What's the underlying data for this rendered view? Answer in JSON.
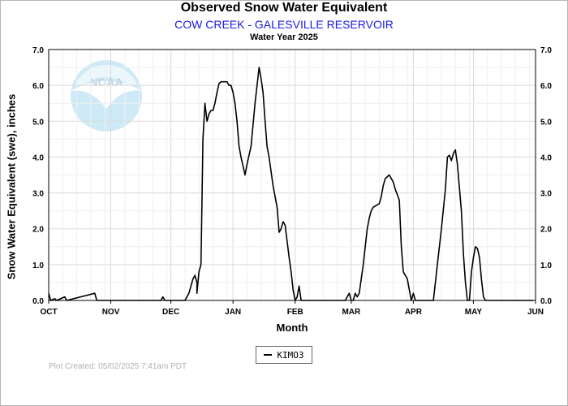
{
  "header": {
    "title": "Observed Snow Water Equivalent",
    "subtitle": "COW CREEK - GALESVILLE RESERVOIR",
    "water_year": "Water Year 2025"
  },
  "footer": {
    "plot_created": "Plot Created: 05/02/2025 7:41am PDT"
  },
  "watermark": {
    "text": "NOAA",
    "colors": {
      "disc": "#cfeaf7",
      "bird": "#ffffff",
      "text": "#c6d3e6"
    }
  },
  "chart_data": {
    "type": "line",
    "title": "Observed Snow Water Equivalent",
    "xlabel": "Month",
    "ylabel": "Snow Water Equivalent (swe),  inches",
    "x_ticks": [
      "OCT",
      "NOV",
      "DEC",
      "JAN",
      "FEB",
      "MAR",
      "APR",
      "MAY",
      "JUN"
    ],
    "y_ticks": [
      "0.0",
      "1.0",
      "2.0",
      "3.0",
      "4.0",
      "5.0",
      "6.0",
      "7.0"
    ],
    "xlim": [
      "2024-10-01",
      "2025-06-01"
    ],
    "ylim": [
      0,
      7
    ],
    "grid": true,
    "legend_position": "bottom-center",
    "series": [
      {
        "name": "KIMO3",
        "color": "#000000",
        "points": [
          [
            "2024-10-01",
            0.2
          ],
          [
            "2024-10-02",
            0.0
          ],
          [
            "2024-10-04",
            0.05
          ],
          [
            "2024-10-05",
            0.0
          ],
          [
            "2024-10-09",
            0.1
          ],
          [
            "2024-10-10",
            0.0
          ],
          [
            "2024-10-24",
            0.2
          ],
          [
            "2024-10-25",
            0.0
          ],
          [
            "2024-11-01",
            0.0
          ],
          [
            "2024-11-26",
            0.0
          ],
          [
            "2024-11-27",
            0.1
          ],
          [
            "2024-11-28",
            0.0
          ],
          [
            "2024-12-03",
            0.0
          ],
          [
            "2024-12-08",
            0.0
          ],
          [
            "2024-12-10",
            0.2
          ],
          [
            "2024-12-12",
            0.6
          ],
          [
            "2024-12-13",
            0.7
          ],
          [
            "2024-12-14",
            0.5
          ],
          [
            "2024-12-14",
            0.2
          ],
          [
            "2024-12-15",
            0.8
          ],
          [
            "2024-12-16",
            1.0
          ],
          [
            "2024-12-17",
            4.5
          ],
          [
            "2024-12-18",
            5.5
          ],
          [
            "2024-12-19",
            5.0
          ],
          [
            "2024-12-20",
            5.2
          ],
          [
            "2024-12-21",
            5.3
          ],
          [
            "2024-12-22",
            5.3
          ],
          [
            "2024-12-23",
            5.5
          ],
          [
            "2024-12-24",
            5.8
          ],
          [
            "2024-12-25",
            6.05
          ],
          [
            "2024-12-26",
            6.1
          ],
          [
            "2024-12-29",
            6.1
          ],
          [
            "2024-12-30",
            6.0
          ],
          [
            "2024-12-31",
            6.0
          ],
          [
            "2025-01-01",
            5.8
          ],
          [
            "2025-01-02",
            5.5
          ],
          [
            "2025-01-03",
            5.0
          ],
          [
            "2025-01-04",
            4.3
          ],
          [
            "2025-01-05",
            4.0
          ],
          [
            "2025-01-07",
            3.5
          ],
          [
            "2025-01-08",
            3.8
          ],
          [
            "2025-01-10",
            4.3
          ],
          [
            "2025-01-12",
            5.5
          ],
          [
            "2025-01-14",
            6.5
          ],
          [
            "2025-01-15",
            6.2
          ],
          [
            "2025-01-16",
            5.8
          ],
          [
            "2025-01-17",
            5.0
          ],
          [
            "2025-01-18",
            4.3
          ],
          [
            "2025-01-19",
            4.0
          ],
          [
            "2025-01-21",
            3.2
          ],
          [
            "2025-01-23",
            2.6
          ],
          [
            "2025-01-24",
            1.9
          ],
          [
            "2025-01-25",
            2.0
          ],
          [
            "2025-01-26",
            2.2
          ],
          [
            "2025-01-27",
            2.1
          ],
          [
            "2025-01-29",
            1.2
          ],
          [
            "2025-01-30",
            0.8
          ],
          [
            "2025-01-31",
            0.3
          ],
          [
            "2025-02-01",
            0.0
          ],
          [
            "2025-02-02",
            0.1
          ],
          [
            "2025-02-03",
            0.4
          ],
          [
            "2025-02-04",
            0.0
          ],
          [
            "2025-02-05",
            0.0
          ],
          [
            "2025-02-26",
            0.0
          ],
          [
            "2025-02-28",
            0.2
          ],
          [
            "2025-03-01",
            0.0
          ],
          [
            "2025-03-02",
            0.0
          ],
          [
            "2025-03-03",
            0.2
          ],
          [
            "2025-03-04",
            0.1
          ],
          [
            "2025-03-05",
            0.2
          ],
          [
            "2025-03-06",
            0.6
          ],
          [
            "2025-03-07",
            1.0
          ],
          [
            "2025-03-08",
            1.5
          ],
          [
            "2025-03-09",
            2.0
          ],
          [
            "2025-03-10",
            2.3
          ],
          [
            "2025-03-11",
            2.5
          ],
          [
            "2025-03-12",
            2.6
          ],
          [
            "2025-03-15",
            2.7
          ],
          [
            "2025-03-16",
            2.9
          ],
          [
            "2025-03-17",
            3.2
          ],
          [
            "2025-03-18",
            3.4
          ],
          [
            "2025-03-20",
            3.5
          ],
          [
            "2025-03-22",
            3.3
          ],
          [
            "2025-03-23",
            3.1
          ],
          [
            "2025-03-25",
            2.8
          ],
          [
            "2025-03-26",
            1.5
          ],
          [
            "2025-03-27",
            0.8
          ],
          [
            "2025-03-28",
            0.7
          ],
          [
            "2025-03-29",
            0.6
          ],
          [
            "2025-03-30",
            0.3
          ],
          [
            "2025-03-31",
            0.0
          ],
          [
            "2025-04-01",
            0.2
          ],
          [
            "2025-04-02",
            0.0
          ],
          [
            "2025-04-11",
            0.0
          ],
          [
            "2025-04-13",
            1.0
          ],
          [
            "2025-04-15",
            2.0
          ],
          [
            "2025-04-17",
            3.1
          ],
          [
            "2025-04-18",
            4.0
          ],
          [
            "2025-04-19",
            4.05
          ],
          [
            "2025-04-20",
            3.9
          ],
          [
            "2025-04-21",
            4.1
          ],
          [
            "2025-04-22",
            4.2
          ],
          [
            "2025-04-23",
            3.8
          ],
          [
            "2025-04-25",
            2.5
          ],
          [
            "2025-04-26",
            1.3
          ],
          [
            "2025-04-27",
            0.5
          ],
          [
            "2025-04-28",
            0.0
          ],
          [
            "2025-04-29",
            0.0
          ],
          [
            "2025-04-30",
            0.8
          ],
          [
            "2025-05-01",
            1.2
          ],
          [
            "2025-05-02",
            1.5
          ],
          [
            "2025-05-03",
            1.45
          ],
          [
            "2025-05-04",
            1.2
          ],
          [
            "2025-05-05",
            0.6
          ],
          [
            "2025-05-06",
            0.1
          ],
          [
            "2025-05-07",
            0.0
          ],
          [
            "2025-05-31",
            0.0
          ]
        ]
      }
    ]
  }
}
